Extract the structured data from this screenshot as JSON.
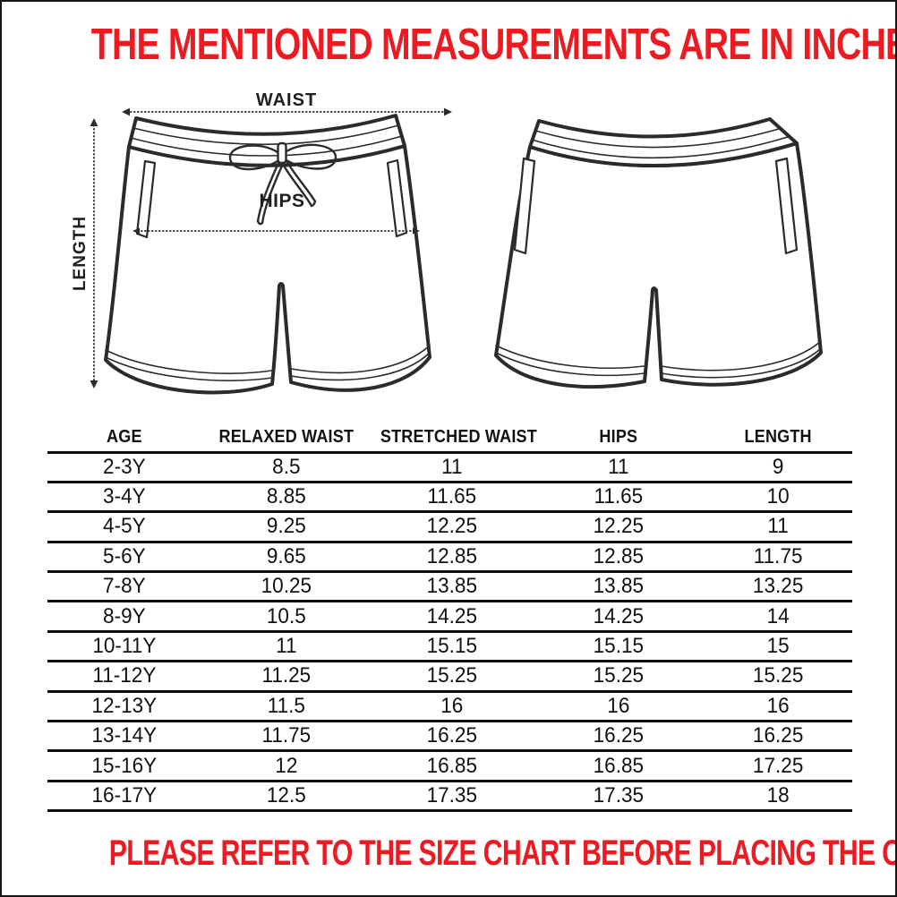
{
  "page": {
    "title": "THE MENTIONED MEASUREMENTS ARE IN INCHES",
    "footer": "PLEASE REFER TO THE SIZE CHART BEFORE PLACING THE ORDER.",
    "accent_color": "#EC1B21",
    "drawing_line_color": "#2e2a2b",
    "table_line_color": "#0c0c0c"
  },
  "diagram": {
    "views": [
      "front",
      "back"
    ],
    "labels": {
      "waist": "WAIST",
      "hips": "HIPS",
      "length": "LENGTH"
    }
  },
  "size_chart": {
    "columns": [
      "AGE",
      "RELAXED WAIST",
      "STRETCHED WAIST",
      "HIPS",
      "LENGTH"
    ],
    "rows": [
      [
        "2-3Y",
        "8.5",
        "11",
        "11",
        "9"
      ],
      [
        "3-4Y",
        "8.85",
        "11.65",
        "11.65",
        "10"
      ],
      [
        "4-5Y",
        "9.25",
        "12.25",
        "12.25",
        "11"
      ],
      [
        "5-6Y",
        "9.65",
        "12.85",
        "12.85",
        "11.75"
      ],
      [
        "7-8Y",
        "10.25",
        "13.85",
        "13.85",
        "13.25"
      ],
      [
        "8-9Y",
        "10.5",
        "14.25",
        "14.25",
        "14"
      ],
      [
        "10-11Y",
        "11",
        "15.15",
        "15.15",
        "15"
      ],
      [
        "11-12Y",
        "11.25",
        "15.25",
        "15.25",
        "15.25"
      ],
      [
        "12-13Y",
        "11.5",
        "16",
        "16",
        "16"
      ],
      [
        "13-14Y",
        "11.75",
        "16.25",
        "16.25",
        "16.25"
      ],
      [
        "15-16Y",
        "12",
        "16.85",
        "16.85",
        "17.25"
      ],
      [
        "16-17Y",
        "12.5",
        "17.35",
        "17.35",
        "18"
      ]
    ]
  }
}
